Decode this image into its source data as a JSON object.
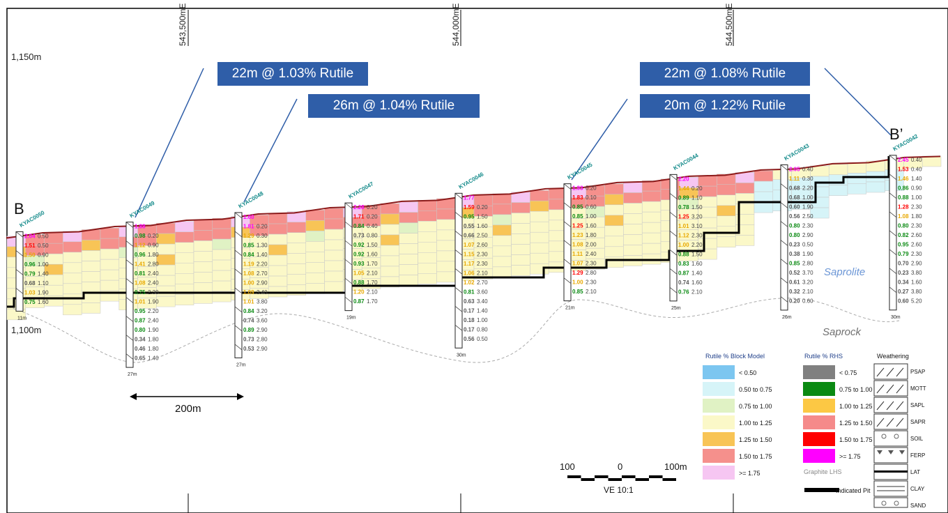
{
  "section": {
    "start_label": "B",
    "end_label": "B’",
    "elevations": [
      "1,150m",
      "1,100m"
    ],
    "eastings": [
      "543,500mE",
      "544,000mE",
      "544,500mE"
    ],
    "scale_bar_label": "200m",
    "saprolite_label": "Saprolite",
    "saprock_label": "Saprock"
  },
  "callouts": [
    "22m @ 1.03% Rutile",
    "26m @ 1.04% Rutile",
    "22m @ 1.08% Rutile",
    "20m @ 1.22% Rutile"
  ],
  "drillholes": [
    {
      "id": "KYAC0050",
      "depth": "11m",
      "values": [
        [
          "2.04",
          "0.50",
          "m"
        ],
        [
          "1.51",
          "0.50",
          "r"
        ],
        [
          "1.50",
          "0.90",
          "y"
        ],
        [
          "0.96",
          "1.00",
          "g"
        ],
        [
          "0.79",
          "1.40",
          "g"
        ],
        [
          "0.68",
          "1.10",
          "k"
        ],
        [
          "1.03",
          "1.90",
          "y"
        ],
        [
          "0.75",
          "1.60",
          "g"
        ]
      ]
    },
    {
      "id": "KYAC0049",
      "depth": "27m",
      "values": [
        [
          "1.88",
          "",
          "m"
        ],
        [
          "0.98",
          "0.20",
          "g"
        ],
        [
          "1.12",
          "0.90",
          "y"
        ],
        [
          "0.96",
          "1.80",
          "g"
        ],
        [
          "1.41",
          "2.80",
          "y"
        ],
        [
          "0.81",
          "2.40",
          "g"
        ],
        [
          "1.08",
          "2.40",
          "y"
        ],
        [
          "0.75",
          "2.30",
          "g"
        ],
        [
          "1.01",
          "1.90",
          "y"
        ],
        [
          "0.95",
          "2.20",
          "g"
        ],
        [
          "0.87",
          "2.40",
          "g"
        ],
        [
          "0.80",
          "1.90",
          "g"
        ],
        [
          "0.34",
          "1.80",
          "k"
        ],
        [
          "0.46",
          "1.80",
          "k"
        ],
        [
          "0.65",
          "1.40",
          "k"
        ]
      ]
    },
    {
      "id": "KYAC0048",
      "depth": "27m",
      "values": [
        [
          "1.60",
          "",
          "m"
        ],
        [
          "1.81",
          "0.20",
          "m"
        ],
        [
          "1.29",
          "0.30",
          "y"
        ],
        [
          "0.85",
          "1.30",
          "g"
        ],
        [
          "0.84",
          "1.40",
          "g"
        ],
        [
          "1.19",
          "2.20",
          "y"
        ],
        [
          "1.08",
          "2.70",
          "y"
        ],
        [
          "1.00",
          "2.90",
          "y"
        ],
        [
          "1.09",
          "3.40",
          "y"
        ],
        [
          "1.01",
          "3.80",
          "y"
        ],
        [
          "0.84",
          "3.20",
          "g"
        ],
        [
          "0.74",
          "3.60",
          "k"
        ],
        [
          "0.89",
          "2.90",
          "g"
        ],
        [
          "0.73",
          "2.80",
          "k"
        ],
        [
          "0.53",
          "2.90",
          "k"
        ]
      ]
    },
    {
      "id": "KYAC0047",
      "depth": "19m",
      "values": [
        [
          "2.28",
          "0.20",
          "m"
        ],
        [
          "1.71",
          "0.20",
          "r"
        ],
        [
          "0.84",
          "0.40",
          "g"
        ],
        [
          "0.73",
          "0.80",
          "k"
        ],
        [
          "0.92",
          "1.50",
          "g"
        ],
        [
          "0.92",
          "1.60",
          "g"
        ],
        [
          "0.93",
          "1.70",
          "g"
        ],
        [
          "1.05",
          "2.10",
          "y"
        ],
        [
          "0.88",
          "1.70",
          "g"
        ],
        [
          "1.20",
          "2.10",
          "y"
        ],
        [
          "0.87",
          "1.70",
          "g"
        ]
      ]
    },
    {
      "id": "KYAC0046",
      "depth": "30m",
      "values": [
        [
          "1.77",
          "",
          "m"
        ],
        [
          "1.59",
          "0.20",
          "r"
        ],
        [
          "0.95",
          "1.50",
          "g"
        ],
        [
          "0.55",
          "1.60",
          "k"
        ],
        [
          "0.66",
          "2.50",
          "k"
        ],
        [
          "1.07",
          "2.60",
          "y"
        ],
        [
          "1.15",
          "2.30",
          "y"
        ],
        [
          "1.17",
          "2.30",
          "y"
        ],
        [
          "1.06",
          "2.10",
          "y"
        ],
        [
          "1.02",
          "2.70",
          "y"
        ],
        [
          "0.81",
          "3.60",
          "g"
        ],
        [
          "0.63",
          "3.40",
          "k"
        ],
        [
          "0.17",
          "1.40",
          "k"
        ],
        [
          "0.18",
          "1.00",
          "k"
        ],
        [
          "0.17",
          "0.80",
          "k"
        ],
        [
          "0.56",
          "0.50",
          "k"
        ]
      ]
    },
    {
      "id": "KYAC0045",
      "depth": "21m",
      "values": [
        [
          "1.93",
          "0.20",
          "m"
        ],
        [
          "1.83",
          "0.10",
          "r"
        ],
        [
          "0.85",
          "0.60",
          "g"
        ],
        [
          "0.85",
          "1.00",
          "g"
        ],
        [
          "1.25",
          "1.60",
          "r"
        ],
        [
          "1.23",
          "1.80",
          "y"
        ],
        [
          "1.08",
          "2.00",
          "y"
        ],
        [
          "1.11",
          "2.40",
          "y"
        ],
        [
          "1.07",
          "2.30",
          "y"
        ],
        [
          "1.29",
          "2.80",
          "r"
        ],
        [
          "1.00",
          "2.30",
          "y"
        ],
        [
          "0.85",
          "2.10",
          "g"
        ]
      ]
    },
    {
      "id": "KYAC0044",
      "depth": "25m",
      "values": [
        [
          "2.20",
          "",
          "m"
        ],
        [
          "1.44",
          "0.20",
          "y"
        ],
        [
          "0.89",
          "1.10",
          "g"
        ],
        [
          "0.78",
          "1.50",
          "g"
        ],
        [
          "1.25",
          "3.20",
          "r"
        ],
        [
          "1.01",
          "3.10",
          "y"
        ],
        [
          "1.12",
          "2.30",
          "y"
        ],
        [
          "1.00",
          "2.20",
          "y"
        ],
        [
          "0.88",
          "1.50",
          "g"
        ],
        [
          "0.83",
          "1.60",
          "g"
        ],
        [
          "0.87",
          "1.40",
          "g"
        ],
        [
          "0.74",
          "1.60",
          "k"
        ],
        [
          "0.76",
          "2.10",
          "g"
        ]
      ]
    },
    {
      "id": "KYAC0043",
      "depth": "26m",
      "values": [
        [
          "2.05",
          "0.40",
          "m"
        ],
        [
          "1.11",
          "0.30",
          "y"
        ],
        [
          "0.68",
          "2.20",
          "k"
        ],
        [
          "0.68",
          "1.00",
          "k"
        ],
        [
          "0.60",
          "1.90",
          "k"
        ],
        [
          "0.56",
          "2.50",
          "k"
        ],
        [
          "0.80",
          "2.30",
          "g"
        ],
        [
          "0.80",
          "2.90",
          "g"
        ],
        [
          "0.23",
          "0.50",
          "k"
        ],
        [
          "0.38",
          "1.90",
          "k"
        ],
        [
          "0.85",
          "2.80",
          "g"
        ],
        [
          "0.52",
          "3.70",
          "k"
        ],
        [
          "0.61",
          "3.20",
          "k"
        ],
        [
          "0.32",
          "2.10",
          "k"
        ],
        [
          "0.20",
          "0.60",
          "k"
        ]
      ]
    },
    {
      "id": "KYAC0042",
      "depth": "30m",
      "values": [
        [
          "2.45",
          "0.40",
          "m"
        ],
        [
          "1.53",
          "0.40",
          "r"
        ],
        [
          "1.46",
          "1.40",
          "y"
        ],
        [
          "0.86",
          "0.90",
          "g"
        ],
        [
          "0.88",
          "1.00",
          "g"
        ],
        [
          "1.28",
          "2.30",
          "r"
        ],
        [
          "1.08",
          "1.80",
          "y"
        ],
        [
          "0.80",
          "2.30",
          "g"
        ],
        [
          "0.82",
          "2.60",
          "g"
        ],
        [
          "0.95",
          "2.60",
          "g"
        ],
        [
          "0.79",
          "2.30",
          "g"
        ],
        [
          "0.70",
          "2.90",
          "k"
        ],
        [
          "0.23",
          "3.80",
          "k"
        ],
        [
          "0.34",
          "1.60",
          "k"
        ],
        [
          "0.27",
          "3.80",
          "k"
        ],
        [
          "0.60",
          "5.20",
          "k"
        ]
      ]
    }
  ],
  "legend_block_model": {
    "title": "Rutile % Block Model",
    "items": [
      {
        "label": "< 0.50",
        "color": "#7cc6f0"
      },
      {
        "label": "0.50 to 0.75",
        "color": "#d6f4f8"
      },
      {
        "label": "0.75 to 1.00",
        "color": "#e0f2c4"
      },
      {
        "label": "1.00 to 1.25",
        "color": "#fbf8c8"
      },
      {
        "label": "1.25 to 1.50",
        "color": "#f8c456"
      },
      {
        "label": "1.50 to 1.75",
        "color": "#f5908c"
      },
      {
        "label": ">= 1.75",
        "color": "#f6c6f2"
      }
    ]
  },
  "legend_rhs": {
    "title": "Rutile % RHS",
    "items": [
      {
        "label": "< 0.75",
        "color": "#808080"
      },
      {
        "label": "0.75 to 1.00",
        "color": "#0a8a12"
      },
      {
        "label": "1.00 to 1.25",
        "color": "#fcc844"
      },
      {
        "label": "1.25 to 1.50",
        "color": "#f58a8a"
      },
      {
        "label": "1.50 to 1.75",
        "color": "#ff0000"
      },
      {
        "label": ">= 1.75",
        "color": "#ff00ff"
      }
    ],
    "graphite_label": "Graphite LHS",
    "pit_label": "Indicated Pit"
  },
  "legend_weathering": {
    "title": "Weathering",
    "items": [
      "PSAP",
      "MOTT",
      "SAPL",
      "SAPR",
      "SOIL",
      "FERP",
      "LAT",
      "CLAY",
      "SAND"
    ]
  },
  "scale": {
    "labels": [
      "100",
      "0",
      "100m"
    ],
    "ve": "VE 10:1"
  },
  "colors": {
    "topo": "#8b1a1a",
    "pit": "#000000",
    "hole_id": "#138a8a",
    "callout": "#2f5ea8",
    "saprolite": "#6b96d6",
    "saprock": "#707070"
  }
}
